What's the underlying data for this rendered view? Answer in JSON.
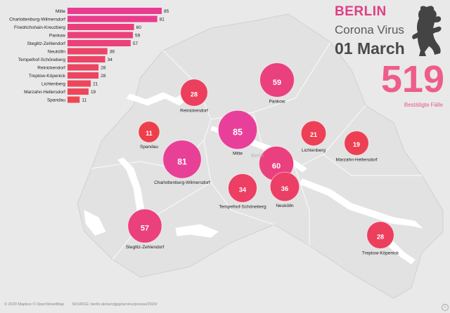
{
  "title": {
    "city": "BERLIN",
    "subtitle": "Corona Virus",
    "date": "01 March"
  },
  "total": {
    "value": "519",
    "caption": "Bestätigte Fälle"
  },
  "colors": {
    "accent": "#e03e84",
    "bar_high": "#e93b8f",
    "bar_low": "#ee4a4a",
    "bubble_high": "#e8409a",
    "bubble_low": "#ee3f3f",
    "map_land": "#e3e3e3",
    "map_water": "#ffffff"
  },
  "icons": {
    "logo": "berlin-bear-icon",
    "info": "info-icon"
  },
  "chart_data": {
    "type": "bar",
    "orientation": "horizontal",
    "categories": [
      "Mitte",
      "Charlottenburg-Wilmersdorf",
      "Friedrichshain-Kreuzberg",
      "Pankow",
      "Steglitz-Zehlendorf",
      "Neukölln",
      "Tempelhof-Schöneberg",
      "Reinickendorf",
      "Treptow-Köpenick",
      "Lichtenberg",
      "Marzahn-Hellersdorf",
      "Spandau"
    ],
    "values": [
      85,
      81,
      60,
      59,
      57,
      36,
      34,
      28,
      28,
      21,
      19,
      11
    ]
  },
  "map": {
    "bubbles": [
      {
        "district": "Pankow",
        "value": 59
      },
      {
        "district": "Reinickendorf",
        "value": 28
      },
      {
        "district": "Mitte",
        "value": 85
      },
      {
        "district": "Spandau",
        "value": 11
      },
      {
        "district": "Lichtenberg",
        "value": 21
      },
      {
        "district": "Marzahn-Hellersdorf",
        "value": 19
      },
      {
        "district": "Charlottenburg-Wilmersdorf",
        "value": 81
      },
      {
        "district": "Friedrichshain-Kreuzberg",
        "value": 60
      },
      {
        "district": "Tempelhof-Schöneberg",
        "value": 34
      },
      {
        "district": "Neukölln",
        "value": 36
      },
      {
        "district": "Steglitz-Zehlendorf",
        "value": 57
      },
      {
        "district": "Treptow-Köpenick",
        "value": 28
      }
    ],
    "place_label": "Berlin"
  },
  "footer": {
    "attribution": "© 2020 Mapbox © OpenStreetMap",
    "source": "SOURCE: berlin.de/sen/gpg/service/presse/2020/"
  }
}
